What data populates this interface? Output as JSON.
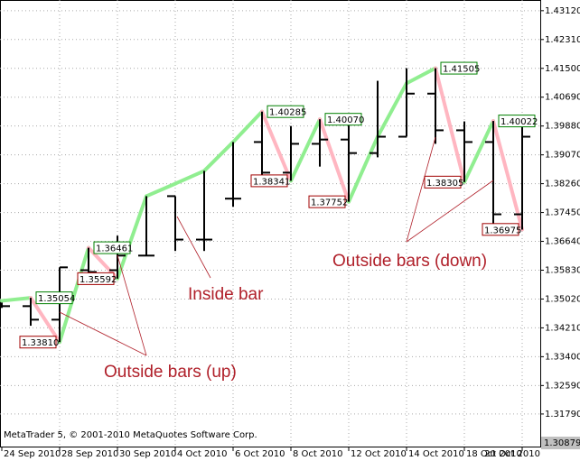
{
  "chart_data": {
    "type": "ohlc",
    "categories": [
      "24 Sep 2010",
      null,
      "28 Sep 2010",
      null,
      "30 Sep 2010",
      null,
      "4 Oct 2010",
      null,
      "6 Oct 2010",
      null,
      "8 Oct 2010",
      null,
      "12 Oct 2010",
      null,
      "14 Oct 2010",
      null,
      "18 Oct 2010",
      null,
      "20 Oct 2010"
    ],
    "open": [
      1.3487,
      1.3482,
      1.3444,
      1.3583,
      1.3583,
      1.3624,
      1.3791,
      1.3669,
      1.3784,
      1.3943,
      1.3857,
      1.3938,
      1.395,
      1.3912,
      1.3958,
      1.4079,
      1.3976,
      1.3943,
      1.374
    ],
    "high": [
      1.3492,
      1.35054,
      1.3591,
      1.36461,
      1.368,
      1.3791,
      1.3791,
      1.3862,
      1.3943,
      1.40285,
      1.3988,
      1.4007,
      1.4001,
      1.4115,
      1.41505,
      1.41505,
      1.4001,
      1.40022,
      1.4006
    ],
    "low": [
      1.3477,
      1.3427,
      1.3381,
      1.3571,
      1.35592,
      1.3624,
      1.3637,
      1.3637,
      1.3761,
      1.3849,
      1.38341,
      1.3874,
      1.37752,
      1.39,
      1.3958,
      1.3938,
      1.38305,
      1.36975,
      1.3697
    ],
    "close": [
      1.3482,
      1.3444,
      1.3591,
      1.3578,
      1.3624,
      1.3624,
      1.3669,
      1.3669,
      1.3784,
      1.3857,
      1.3938,
      1.395,
      1.3912,
      1.3958,
      1.4079,
      1.3976,
      1.3943,
      1.374,
      1.3958
    ],
    "bar_color": "#000000",
    "zigzag": {
      "values": [
        1.3497,
        1.35054,
        1.3381,
        1.36461,
        1.35592,
        1.3791,
        1.3826,
        1.3862,
        1.3943,
        1.40285,
        1.38341,
        1.4007,
        1.37752,
        1.3958,
        1.4108,
        1.41505,
        1.38305,
        1.40022,
        1.36975
      ],
      "value_labels": [
        null,
        "1.35054",
        "1.33810",
        "1.36461",
        "1.35592",
        null,
        null,
        null,
        null,
        "1.40285",
        "1.38341",
        "1.40070",
        "1.37752",
        null,
        null,
        "1.41505",
        "1.38305",
        "1.40022",
        "1.36975"
      ],
      "up_color": "#90ee90",
      "down_color": "#ffb6c1"
    },
    "ylim": [
      1.3085,
      1.4342
    ],
    "yticks": [
      {
        "value": 1.4312,
        "label": "1.43120"
      },
      {
        "value": 1.4231,
        "label": "1.42310"
      },
      {
        "value": 1.415,
        "label": "1.41500"
      },
      {
        "value": 1.4069,
        "label": "1.40690"
      },
      {
        "value": 1.3988,
        "label": "1.39880"
      },
      {
        "value": 1.3907,
        "label": "1.39070"
      },
      {
        "value": 1.3826,
        "label": "1.38260"
      },
      {
        "value": 1.3745,
        "label": "1.37450"
      },
      {
        "value": 1.3664,
        "label": "1.36640"
      },
      {
        "value": 1.3583,
        "label": "1.35830"
      },
      {
        "value": 1.3502,
        "label": "1.35020"
      },
      {
        "value": 1.3421,
        "label": "1.34210"
      },
      {
        "value": 1.334,
        "label": "1.33400"
      },
      {
        "value": 1.3259,
        "label": "1.32590"
      },
      {
        "value": 1.3179,
        "label": "1.31790"
      }
    ],
    "last_price": 1.30879,
    "grid": true,
    "annotations": [
      "Inside bar",
      "Outside bars (up)",
      "Outside bars (down)"
    ],
    "copyright": "MetaTrader 5, © 2001-2010 MetaQuotes Software Corp."
  }
}
